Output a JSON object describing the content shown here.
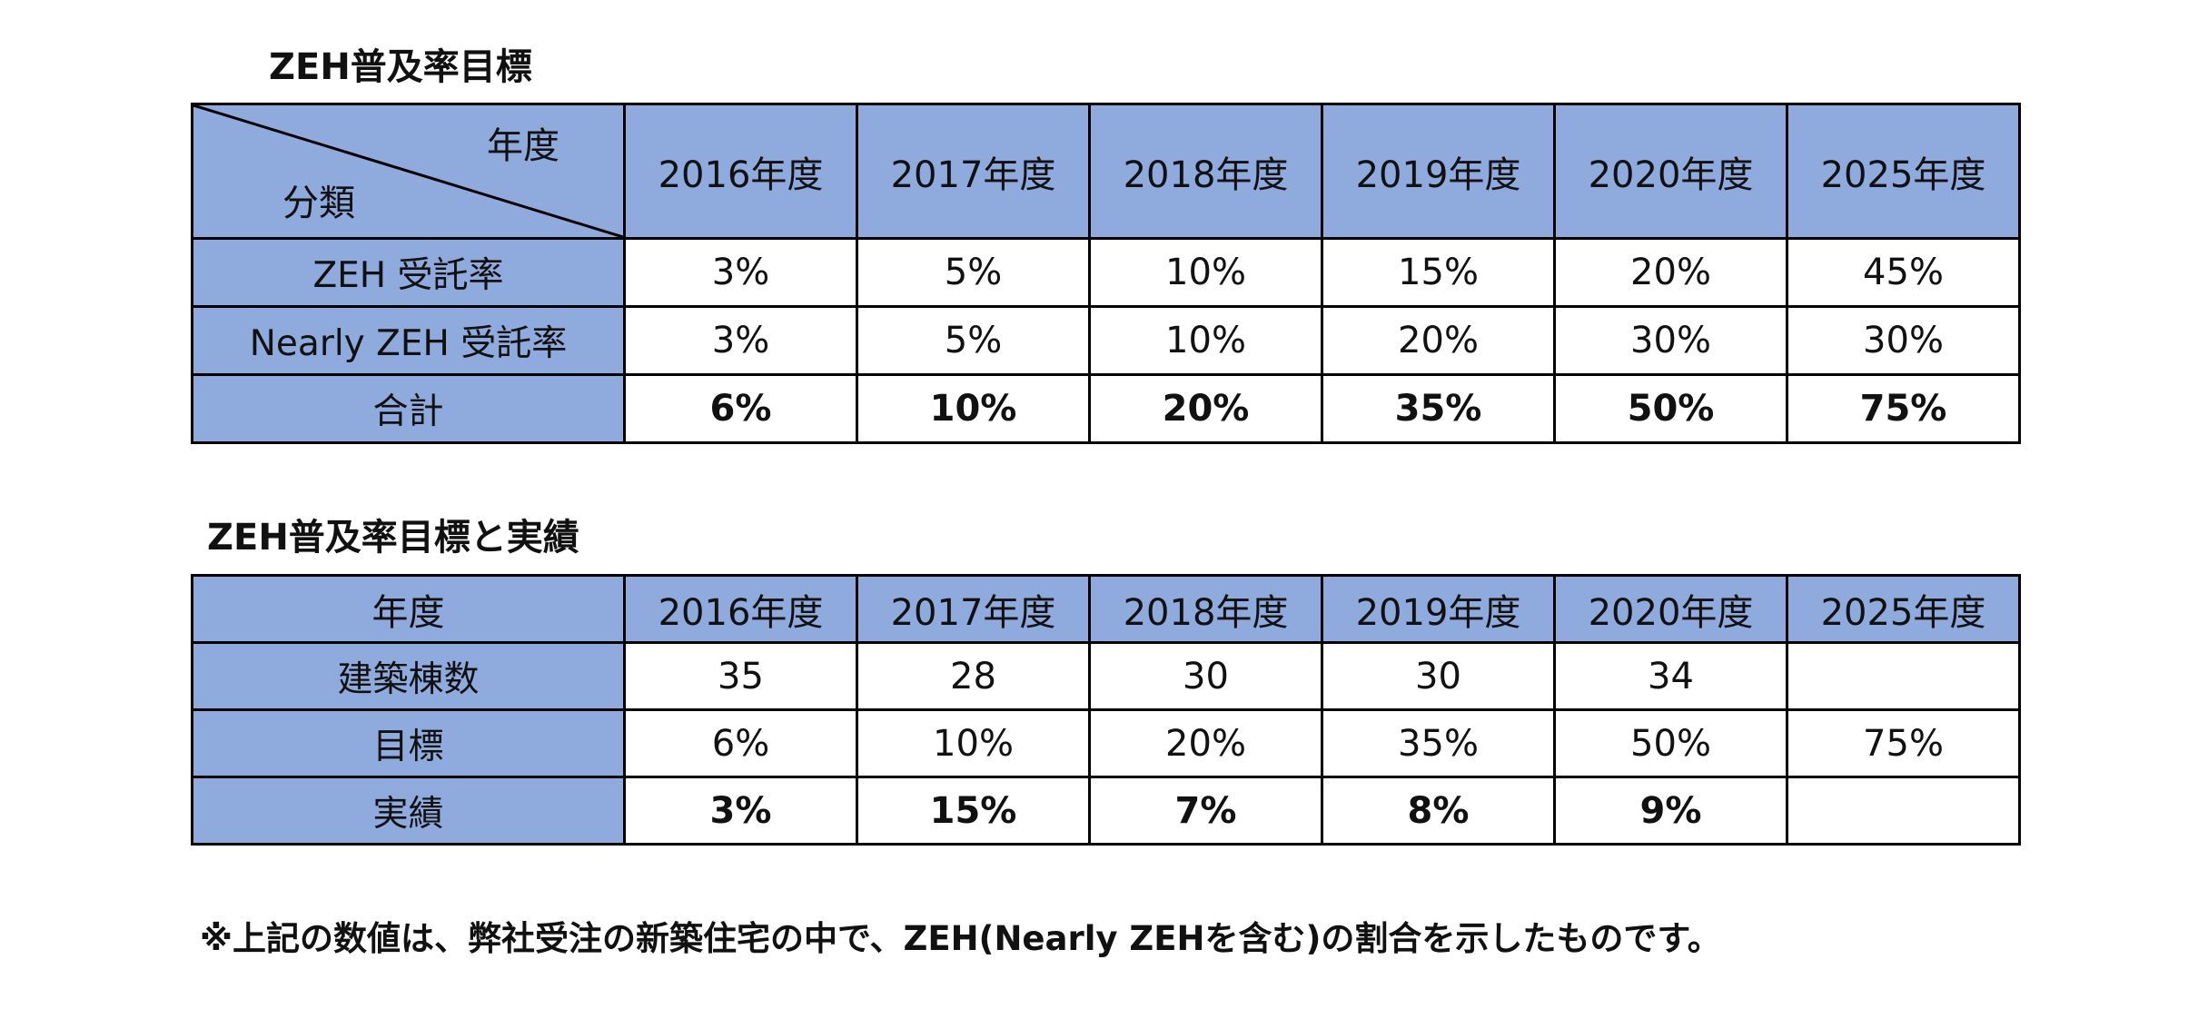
{
  "table1": {
    "title": "ZEH普及率目標",
    "corner_top": "年度",
    "corner_bottom": "分類",
    "years": [
      "2016年度",
      "2017年度",
      "2018年度",
      "2019年度",
      "2020年度",
      "2025年度"
    ],
    "rows": [
      {
        "label": "ZEH 受託率",
        "values": [
          "3%",
          "5%",
          "10%",
          "15%",
          "20%",
          "45%"
        ]
      },
      {
        "label": "Nearly ZEH 受託率",
        "values": [
          "3%",
          "5%",
          "10%",
          "20%",
          "30%",
          "30%"
        ]
      },
      {
        "label": "合計",
        "values": [
          "6%",
          "10%",
          "20%",
          "35%",
          "50%",
          "75%"
        ]
      }
    ]
  },
  "table2": {
    "title": "ZEH普及率目標と実績",
    "header_label": "年度",
    "years": [
      "2016年度",
      "2017年度",
      "2018年度",
      "2019年度",
      "2020年度",
      "2025年度"
    ],
    "rows": [
      {
        "label": "建築棟数",
        "values": [
          "35",
          "28",
          "30",
          "30",
          "34",
          ""
        ]
      },
      {
        "label": "目標",
        "values": [
          "6%",
          "10%",
          "20%",
          "35%",
          "50%",
          "75%"
        ]
      },
      {
        "label": "実績",
        "values": [
          "3%",
          "15%",
          "7%",
          "8%",
          "9%",
          ""
        ]
      }
    ]
  },
  "colors": {
    "header_fill": "#8faadc",
    "border": "#000000",
    "background": "#ffffff"
  },
  "footnote": "※上記の数値は、弊社受注の新築住宅の中で、ZEH(Nearly ZEHを含む)の割合を示したものです。"
}
